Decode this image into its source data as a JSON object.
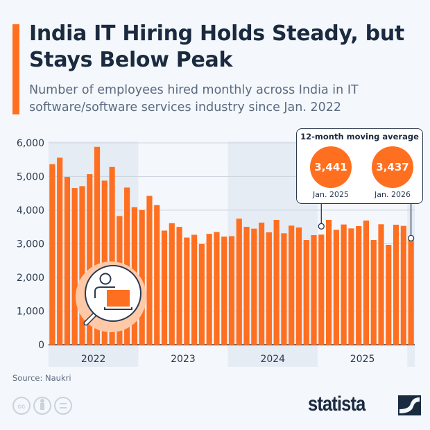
{
  "title": "India IT Hiring Holds Steady, but Stays Below Peak",
  "subtitle": "Number of employees hired monthly across India in IT software/software services industry since Jan. 2022",
  "source": "Source: Naukri",
  "brand": "statista",
  "colors": {
    "bar": "#ff6f20",
    "text": "#1a2a3f",
    "band": "#e6ecf4",
    "background": "#f4f7fb"
  },
  "icons": [
    "cc-icon",
    "by-icon",
    "nd-icon",
    "statista-logo-icon",
    "person-laptop-magnifier-icon"
  ],
  "callout": {
    "title": "12-month moving average",
    "items": [
      {
        "value": "3,441",
        "label": "Jan. 2025"
      },
      {
        "value": "3,437",
        "label": "Jan. 2026"
      }
    ]
  },
  "chart_data": {
    "type": "bar",
    "title": "India IT Hiring Holds Steady, but Stays Below Peak",
    "xlabel": "",
    "ylabel": "",
    "ylim": [
      0,
      6000
    ],
    "yticks": [
      "0",
      "1,000",
      "2,000",
      "3,000",
      "4,000",
      "5,000",
      "6,000"
    ],
    "xtick_labels": [
      "2022",
      "2023",
      "2024",
      "2025"
    ],
    "grid": true,
    "start": "2022-01",
    "frequency": "monthly",
    "categories": [
      "Jan 2022",
      "Feb 2022",
      "Mar 2022",
      "Apr 2022",
      "May 2022",
      "Jun 2022",
      "Jul 2022",
      "Aug 2022",
      "Sep 2022",
      "Oct 2022",
      "Nov 2022",
      "Dec 2022",
      "Jan 2023",
      "Feb 2023",
      "Mar 2023",
      "Apr 2023",
      "May 2023",
      "Jun 2023",
      "Jul 2023",
      "Aug 2023",
      "Sep 2023",
      "Oct 2023",
      "Nov 2023",
      "Dec 2023",
      "Jan 2024",
      "Feb 2024",
      "Mar 2024",
      "Apr 2024",
      "May 2024",
      "Jun 2024",
      "Jul 2024",
      "Aug 2024",
      "Sep 2024",
      "Oct 2024",
      "Nov 2024",
      "Dec 2024",
      "Jan 2025",
      "Feb 2025",
      "Mar 2025",
      "Apr 2025",
      "May 2025",
      "Jun 2025",
      "Jul 2025",
      "Aug 2025",
      "Sep 2025",
      "Oct 2025",
      "Nov 2025",
      "Dec 2025",
      "Jan 2026"
    ],
    "values": [
      5367,
      5559,
      4988,
      4658,
      4713,
      5071,
      5882,
      4878,
      5284,
      3825,
      4672,
      4087,
      4004,
      4424,
      4149,
      3392,
      3612,
      3502,
      3185,
      3268,
      2993,
      3296,
      3351,
      3213,
      3227,
      3746,
      3505,
      3450,
      3629,
      3340,
      3711,
      3313,
      3540,
      3485,
      3113,
      3258,
      3272,
      3711,
      3416,
      3574,
      3457,
      3526,
      3691,
      3113,
      3581,
      2969,
      3567,
      3533,
      3168
    ],
    "annotations": [
      {
        "label": "Jan. 2025",
        "moving_average": 3441
      },
      {
        "label": "Jan. 2026",
        "moving_average": 3437
      }
    ]
  }
}
